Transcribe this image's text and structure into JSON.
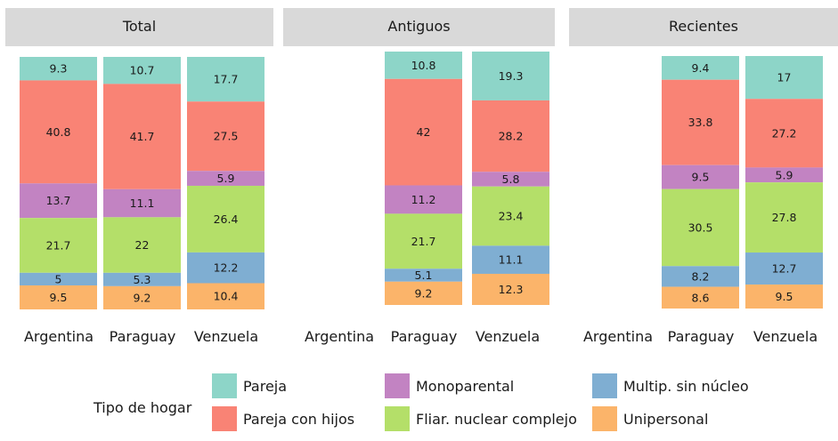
{
  "chart_data": {
    "type": "bar",
    "stacked": true,
    "panels": [
      {
        "title": "Total",
        "categories": [
          "Argentina",
          "Paraguay",
          "Venzuela"
        ],
        "series": [
          {
            "name": "Pareja",
            "values": [
              9.3,
              10.7,
              17.7
            ]
          },
          {
            "name": "Pareja con hijos",
            "values": [
              40.8,
              41.7,
              27.5
            ]
          },
          {
            "name": "Monoparental",
            "values": [
              13.7,
              11.1,
              5.9
            ]
          },
          {
            "name": "Fliar. nuclear complejo",
            "values": [
              21.7,
              22,
              26.4
            ]
          },
          {
            "name": "Multip. sin núcleo",
            "values": [
              5,
              5.3,
              12.2
            ]
          },
          {
            "name": "Unipersonal",
            "values": [
              9.5,
              9.2,
              10.4
            ]
          }
        ]
      },
      {
        "title": "Antiguos",
        "categories": [
          "Argentina",
          "Paraguay",
          "Venzuela"
        ],
        "series": [
          {
            "name": "Pareja",
            "values": [
              null,
              10.8,
              19.3
            ]
          },
          {
            "name": "Pareja con hijos",
            "values": [
              null,
              42,
              28.2
            ]
          },
          {
            "name": "Monoparental",
            "values": [
              null,
              11.2,
              5.8
            ]
          },
          {
            "name": "Fliar. nuclear complejo",
            "values": [
              null,
              21.7,
              23.4
            ]
          },
          {
            "name": "Multip. sin núcleo",
            "values": [
              null,
              5.1,
              11.1
            ]
          },
          {
            "name": "Unipersonal",
            "values": [
              null,
              9.2,
              12.3
            ]
          }
        ]
      },
      {
        "title": "Recientes",
        "categories": [
          "Argentina",
          "Paraguay",
          "Venzuela"
        ],
        "series": [
          {
            "name": "Pareja",
            "values": [
              null,
              9.4,
              17
            ]
          },
          {
            "name": "Pareja con hijos",
            "values": [
              null,
              33.8,
              27.2
            ]
          },
          {
            "name": "Monoparental",
            "values": [
              null,
              9.5,
              5.9
            ]
          },
          {
            "name": "Fliar. nuclear complejo",
            "values": [
              null,
              30.5,
              27.8
            ]
          },
          {
            "name": "Multip. sin núcleo",
            "values": [
              null,
              8.2,
              12.7
            ]
          },
          {
            "name": "Unipersonal",
            "values": [
              null,
              8.6,
              9.5
            ]
          }
        ]
      }
    ],
    "legend": {
      "title": "Tipo de hogar",
      "position": "bottom",
      "items": [
        {
          "name": "Pareja",
          "color": "#8dd5c8"
        },
        {
          "name": "Monoparental",
          "color": "#c283c2"
        },
        {
          "name": "Multip. sin núcleo",
          "color": "#7faed2"
        },
        {
          "name": "Pareja con hijos",
          "color": "#f98375"
        },
        {
          "name": "Fliar. nuclear complejo",
          "color": "#b4df69"
        },
        {
          "name": "Unipersonal",
          "color": "#fbb46a"
        }
      ]
    },
    "colors": {
      "Pareja": "#8dd5c8",
      "Pareja con hijos": "#f98375",
      "Monoparental": "#c283c2",
      "Fliar. nuclear complejo": "#b4df69",
      "Multip. sin núcleo": "#7faed2",
      "Unipersonal": "#fbb46a"
    },
    "panel_header_color": "#d9d9d9",
    "ylim": [
      0,
      100
    ]
  }
}
